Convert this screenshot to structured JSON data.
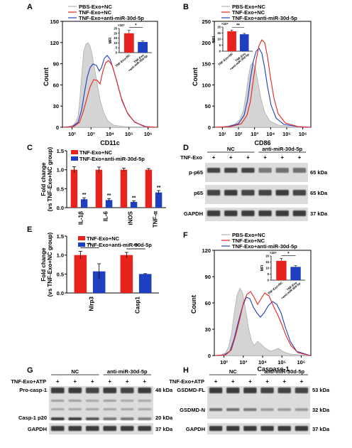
{
  "colors": {
    "red": "#e8231d",
    "blue": "#1e3fbf",
    "gray_fill": "#d4d4d4",
    "gray_line": "#b0b0b0",
    "blot_bg": "#dcdcdc",
    "band": "#2b2b2b"
  },
  "flow_legend": [
    "PBS-Exo+NC",
    "TNF-Exo+NC",
    "TNF-Exo+anti-miR-30d-5p"
  ],
  "bar_legend": [
    "TNF-Exo+NC",
    "TNF-Exo+anti-miR-30d-5p"
  ],
  "mfi_ticks": [
    "TNF-Exo+NC",
    "TNF-Exo\n+anti-miR-30d-5p"
  ],
  "panels": {
    "A": {
      "letter": "A",
      "ylabel": "Count",
      "xlabel": "CD11c",
      "yticks": [
        "0",
        "30",
        "60",
        "90",
        "120",
        "150"
      ],
      "xticks": [
        "10²",
        "10³",
        "10⁴",
        "10⁵",
        "10⁶"
      ],
      "inset": {
        "scale": "×10⁵",
        "ylabel": "MFI",
        "yticks": [
          "0",
          "5",
          "10",
          "15",
          "20",
          "25"
        ],
        "ymax": 25,
        "values": [
          20,
          11
        ],
        "errors": [
          3,
          1
        ],
        "sig": "*"
      }
    },
    "B": {
      "letter": "B",
      "ylabel": "Count",
      "xlabel": "CD86",
      "yticks": [
        "0",
        "50",
        "100",
        "150",
        "200",
        "250"
      ],
      "xticks": [
        "10¹",
        "10²",
        "10³",
        "10⁴",
        "10⁵",
        "10⁶"
      ],
      "inset": {
        "scale": "×10⁵",
        "ylabel": "MFI",
        "yticks": [
          "0",
          "5",
          "10",
          "15",
          "20"
        ],
        "ymax": 20,
        "values": [
          16.5,
          14
        ],
        "errors": [
          1,
          0.7
        ],
        "sig": "**"
      }
    },
    "F": {
      "letter": "F",
      "ylabel": "Count",
      "xlabel": "Caspase-1",
      "yticks": [
        "0",
        "30",
        "60",
        "90",
        "120"
      ],
      "xticks": [
        "10²",
        "10³",
        "10⁴",
        "10⁵",
        "10⁶"
      ],
      "inset": {
        "scale": "×10⁵",
        "ylabel": "MFI",
        "yticks": [
          "0",
          "5",
          "10",
          "15",
          "20"
        ],
        "ymax": 20,
        "values": [
          16,
          11
        ],
        "errors": [
          2,
          1
        ],
        "sig": "*"
      }
    }
  },
  "chart_data": [
    {
      "panel": "C",
      "type": "bar",
      "ylabel": "Fold change\n(vs TNF-Exo+NC group)",
      "yticks": [
        "0.0",
        "0.5",
        "1.0",
        "1.5"
      ],
      "ylim": [
        0,
        1.5
      ],
      "categories": [
        "IL-1β",
        "IL-6",
        "iNOS",
        "TNF-α"
      ],
      "series": [
        {
          "name": "TNF-Exo+NC",
          "values": [
            1.0,
            1.0,
            1.0,
            1.0
          ],
          "errors": [
            0.08,
            0.07,
            0.04,
            0.03
          ]
        },
        {
          "name": "TNF-Exo+anti-miR-30d-5p",
          "values": [
            0.22,
            0.2,
            0.15,
            0.4
          ],
          "errors": [
            0.04,
            0.04,
            0.03,
            0.05
          ]
        }
      ],
      "annotations": [
        "**",
        "**",
        "**",
        "**"
      ]
    },
    {
      "panel": "E",
      "type": "bar",
      "ylabel": "Fold change\n(vs TNF-Exo+NC group)",
      "yticks": [
        "0.0",
        "0.5",
        "1.0",
        "1.5"
      ],
      "ylim": [
        0,
        1.5
      ],
      "categories": [
        "Nlrp3",
        "Casp1"
      ],
      "series": [
        {
          "name": "TNF-Exo+NC",
          "values": [
            1.0,
            1.0
          ],
          "errors": [
            0.1,
            0.07
          ]
        },
        {
          "name": "TNF-Exo+anti-miR-30d-5p",
          "values": [
            0.57,
            0.5
          ],
          "errors": [
            0.2,
            0.01
          ]
        }
      ],
      "annotations": [
        "*",
        "**"
      ]
    },
    {
      "panel": "A",
      "type": "bar",
      "title": "MFI (×10⁵)",
      "categories": [
        "TNF-Exo+NC",
        "TNF-Exo+anti-miR-30d-5p"
      ],
      "values": [
        20,
        11
      ],
      "ylim": [
        0,
        25
      ]
    },
    {
      "panel": "B",
      "type": "bar",
      "title": "MFI (×10⁵)",
      "categories": [
        "TNF-Exo+NC",
        "TNF-Exo+anti-miR-30d-5p"
      ],
      "values": [
        16.5,
        14
      ],
      "ylim": [
        0,
        20
      ]
    },
    {
      "panel": "F",
      "type": "bar",
      "title": "MFI (×10⁵)",
      "categories": [
        "TNF-Exo+NC",
        "TNF-Exo+anti-miR-30d-5p"
      ],
      "values": [
        16,
        11
      ],
      "ylim": [
        0,
        20
      ]
    }
  ],
  "blots": {
    "D": {
      "letter": "D",
      "treatment": "TNF-Exo",
      "signs": [
        "+",
        "+",
        "+",
        "+",
        "+",
        "+"
      ],
      "groups": [
        "NC",
        "anti-miR-30d-5p"
      ],
      "rows": [
        {
          "label": "p-p65",
          "kda": "65 kDa"
        },
        {
          "label": "p65",
          "kda": "65 kDa"
        },
        {
          "label": "GAPDH",
          "kda": "37 kDa"
        }
      ]
    },
    "G": {
      "letter": "G",
      "treatment": "TNF-Exo+ATP",
      "signs": [
        "+",
        "+",
        "+",
        "+",
        "+",
        "+"
      ],
      "groups": [
        "NC",
        "anti-miR-30d-5p"
      ],
      "rows": [
        {
          "label": "Pro-casp-1",
          "kda": "48 kDa"
        },
        {
          "label": "Casp-1 p20",
          "kda": "20 kDa"
        },
        {
          "label": "GAPDH",
          "kda": "37 kDa"
        }
      ]
    },
    "H": {
      "letter": "H",
      "treatment": "TNF-Exo+ATP",
      "signs": [
        "+",
        "+",
        "+",
        "+",
        "+",
        "+"
      ],
      "groups": [
        "NC",
        "anti-miR-30d-5p"
      ],
      "rows": [
        {
          "label": "GSDMD-FL",
          "kda": "53 kDa"
        },
        {
          "label": "GSDMD-N",
          "kda": "32 kDa"
        },
        {
          "label": "GAPDH",
          "kda": "37 kDa"
        }
      ]
    }
  }
}
